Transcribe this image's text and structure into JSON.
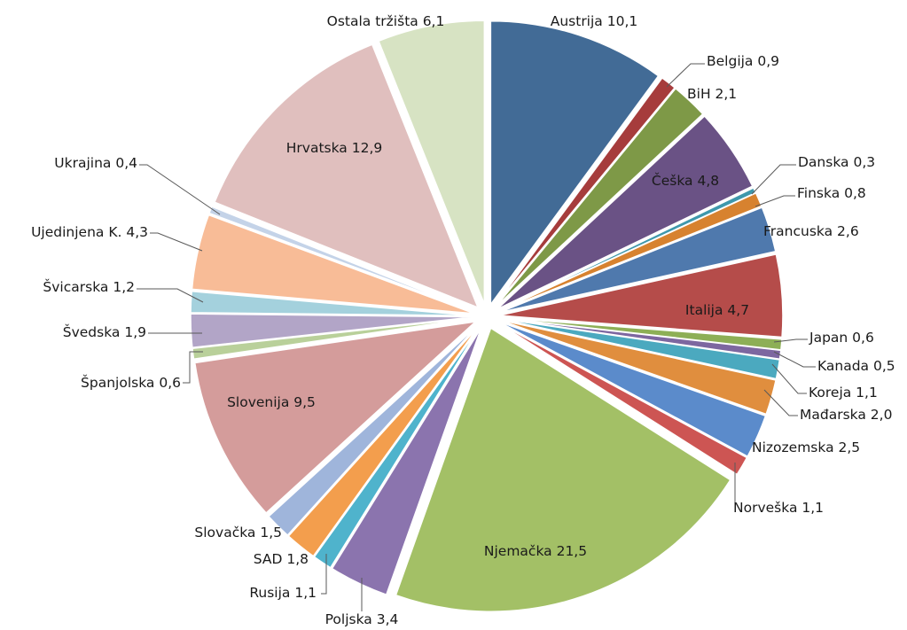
{
  "chart_data": {
    "type": "pie",
    "exploded": true,
    "start": "12 o'clock, clockwise",
    "slices": [
      {
        "label": "Austrija 10,1",
        "name": "Austrija",
        "value": 10.1,
        "color": "#426B96"
      },
      {
        "label": "Belgija 0,9",
        "name": "Belgija",
        "value": 0.9,
        "color": "#A63C3C"
      },
      {
        "label": "BiH 2,1",
        "name": "BiH",
        "value": 2.1,
        "color": "#7E9947"
      },
      {
        "label": "Češka 4,8",
        "name": "Češka",
        "value": 4.8,
        "color": "#6A5285"
      },
      {
        "label": "Danska 0,3",
        "name": "Danska",
        "value": 0.3,
        "color": "#3E98AC"
      },
      {
        "label": "Finska 0,8",
        "name": "Finska",
        "value": 0.8,
        "color": "#D7822F"
      },
      {
        "label": "Francuska 2,6",
        "name": "Francuska",
        "value": 2.6,
        "color": "#4F79AD"
      },
      {
        "label": "Italija 4,7",
        "name": "Italija",
        "value": 4.7,
        "color": "#B54C4A"
      },
      {
        "label": "Japan 0,6",
        "name": "Japan",
        "value": 0.6,
        "color": "#8DAF56"
      },
      {
        "label": "Kanada 0,5",
        "name": "Kanada",
        "value": 0.5,
        "color": "#7D67A0"
      },
      {
        "label": "Koreja 1,1",
        "name": "Koreja",
        "value": 1.1,
        "color": "#4BA9BF"
      },
      {
        "label": "Mađarska 2,0",
        "name": "Mađarska",
        "value": 2.0,
        "color": "#E08E3E"
      },
      {
        "label": "Nizozemska 2,5",
        "name": "Nizozemska",
        "value": 2.5,
        "color": "#5B8BCB"
      },
      {
        "label": "Norveška 1,1",
        "name": "Norveška",
        "value": 1.1,
        "color": "#CD5553"
      },
      {
        "label": "Njemačka 21,5",
        "name": "Njemačka",
        "value": 21.5,
        "color": "#A3C066"
      },
      {
        "label": "Poljska 3,4",
        "name": "Poljska",
        "value": 3.4,
        "color": "#8B74AE"
      },
      {
        "label": "Rusija 1,1",
        "name": "Rusija",
        "value": 1.1,
        "color": "#4FB3CC"
      },
      {
        "label": "SAD 1,8",
        "name": "SAD",
        "value": 1.8,
        "color": "#F39E4D"
      },
      {
        "label": "Slovačka 1,5",
        "name": "Slovačka",
        "value": 1.5,
        "color": "#9FB5DB"
      },
      {
        "label": "Slovenija 9,5",
        "name": "Slovenija",
        "value": 9.5,
        "color": "#D49C9B"
      },
      {
        "label": "Španjolska 0,6",
        "name": "Španjolska",
        "value": 0.6,
        "color": "#B9D09A"
      },
      {
        "label": "Švedska 1,9",
        "name": "Švedska",
        "value": 1.9,
        "color": "#B2A5C7"
      },
      {
        "label": "Švicarska 1,2",
        "name": "Švicarska",
        "value": 1.2,
        "color": "#A4D1DD"
      },
      {
        "label": "Ujedinjena K. 4,3",
        "name": "Ujedinjena K.",
        "value": 4.3,
        "color": "#F8BC97"
      },
      {
        "label": "Ukrajina 0,4",
        "name": "Ukrajina",
        "value": 0.4,
        "color": "#C4D3E8"
      },
      {
        "label": "Hrvatska 12,9",
        "name": "Hrvatska",
        "value": 12.9,
        "color": "#E0BFBE"
      },
      {
        "label": "Ostala tržišta 6,1",
        "name": "Ostala tržišta",
        "value": 6.1,
        "color": "#D7E3C3"
      }
    ]
  }
}
